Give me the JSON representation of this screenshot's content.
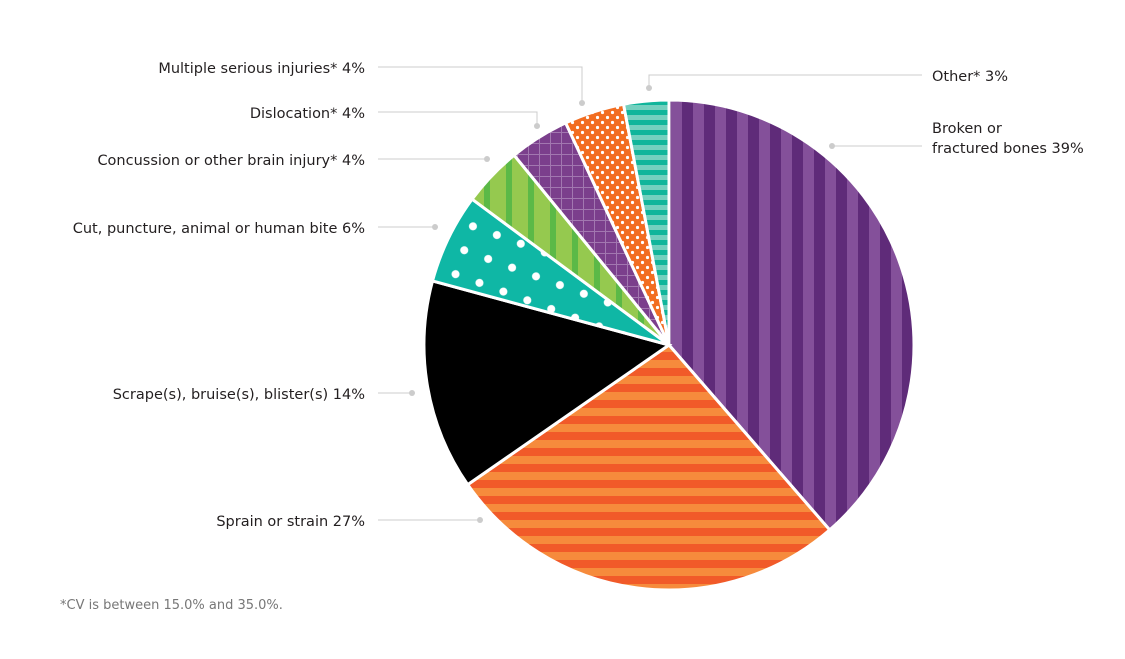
{
  "chart_data": {
    "type": "pie",
    "title": "",
    "slices": [
      {
        "label": "Broken or fractured bones",
        "label_lines": [
          "Broken or",
          "fractured bones  39%"
        ],
        "value": 39,
        "colors": [
          "#5f2b79",
          "#84509a"
        ],
        "pattern": "vertical-stripes"
      },
      {
        "label": "Sprain or strain",
        "label_lines": [
          "Sprain or strain  27%"
        ],
        "value": 27,
        "colors": [
          "#f15a29",
          "#f68b3c"
        ],
        "pattern": "horizontal-stripes"
      },
      {
        "label": "Scrape(s), bruise(s), blister(s)",
        "label_lines": [
          "Scrape(s), bruise(s), blister(s)  14%"
        ],
        "value": 14,
        "colors": [
          "#000000"
        ],
        "pattern": "solid"
      },
      {
        "label": "Cut, puncture, animal or human bite",
        "label_lines": [
          "Cut, puncture, animal or human bite  6%"
        ],
        "value": 6,
        "colors": [
          "#0fb7a5",
          "#ffffff"
        ],
        "pattern": "large-dots"
      },
      {
        "label": "Concussion or other brain injury*",
        "label_lines": [
          "Concussion or other brain injury*  4%"
        ],
        "value": 4,
        "colors": [
          "#95c94f",
          "#5bb947"
        ],
        "pattern": "vertical-stripes"
      },
      {
        "label": "Dislocation*",
        "label_lines": [
          "Dislocation*  4%"
        ],
        "value": 4,
        "colors": [
          "#7b3f8c",
          "#a277b0"
        ],
        "pattern": "grid"
      },
      {
        "label": "Multiple serious injuries*",
        "label_lines": [
          "Multiple serious injuries*  4%"
        ],
        "value": 4,
        "colors": [
          "#f26d21",
          "#ffffff"
        ],
        "pattern": "small-dots"
      },
      {
        "label": "Other*",
        "label_lines": [
          "Other*  3%"
        ],
        "value": 3,
        "colors": [
          "#10b59b",
          "#74d0bf"
        ],
        "pattern": "horizontal-stripes"
      }
    ],
    "unit": "%",
    "start": "top",
    "direction": "clockwise",
    "leader_color": "#cccccc"
  },
  "footnote": "*CV is between 15.0% and 35.0%."
}
